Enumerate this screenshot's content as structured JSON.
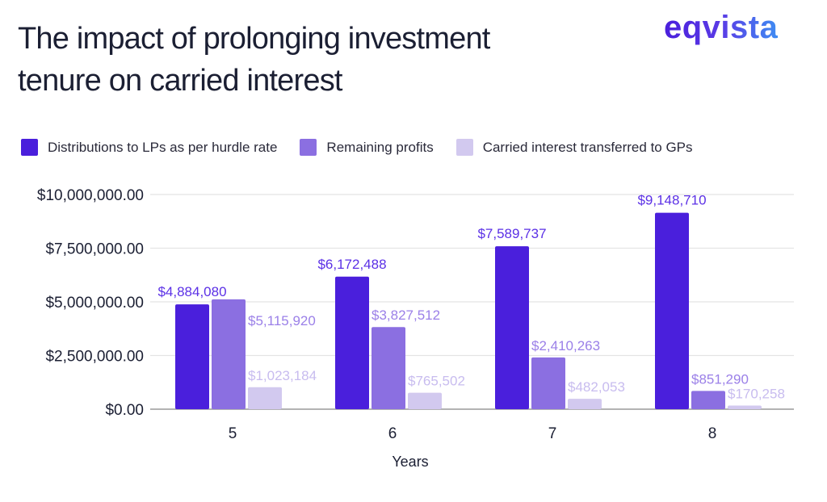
{
  "title_lines": [
    "The impact of prolonging investment",
    "tenure on carried interest"
  ],
  "logo": "eqvista",
  "chart_data": {
    "type": "bar",
    "title": "The impact of prolonging investment tenure on carried interest",
    "xlabel": "Years",
    "ylabel": "",
    "categories": [
      "5",
      "6",
      "7",
      "8"
    ],
    "ylim": [
      0,
      10000000
    ],
    "yticks": [
      0,
      2500000,
      5000000,
      7500000,
      10000000
    ],
    "ytick_labels": [
      "$0.00",
      "$2,500,000.00",
      "$5,000,000.00",
      "$7,500,000.00",
      "$10,000,000.00"
    ],
    "grid": true,
    "legend_placement": "top-left",
    "series": [
      {
        "name": "Distributions to LPs as per hurdle rate",
        "color": "#4a1fdc",
        "label_color": "#5b30e6",
        "values": [
          4884080,
          6172488,
          7589737,
          9148710
        ],
        "labels": [
          "$4,884,080",
          "$6,172,488",
          "$7,589,737",
          "$9,148,710"
        ]
      },
      {
        "name": "Remaining profits",
        "color": "#8b6fe1",
        "label_color": "#9b80e8",
        "values": [
          5115920,
          3827512,
          2410263,
          851290
        ],
        "labels": [
          "$5,115,920",
          "$3,827,512",
          "$2,410,263",
          "$851,290"
        ]
      },
      {
        "name": "Carried interest transferred to GPs",
        "color": "#d2c9ef",
        "label_color": "#c8bcef",
        "values": [
          1023184,
          765502,
          482053,
          170258
        ],
        "labels": [
          "$1,023,184",
          "$765,502",
          "$482,053",
          "$170,258"
        ]
      }
    ]
  }
}
